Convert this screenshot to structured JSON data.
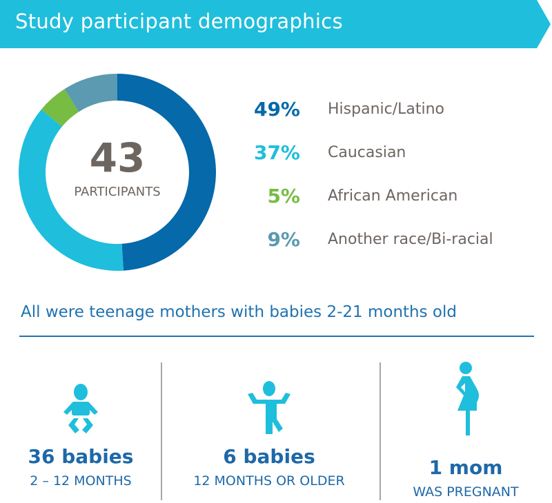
{
  "header": {
    "title": "Study participant demographics",
    "color": "#1fbedc"
  },
  "chart_data": {
    "type": "pie",
    "donut": true,
    "center_value": "43",
    "center_label": "PARTICIPANTS",
    "categories": [
      "Hispanic/Latino",
      "Caucasian",
      "African American",
      "Another race/Bi-racial"
    ],
    "values": [
      49,
      37,
      5,
      9
    ],
    "value_labels": [
      "49%",
      "37%",
      "5%",
      "9%"
    ],
    "colors": [
      "#0569aa",
      "#1fbedc",
      "#77bc43",
      "#5b9ab0"
    ]
  },
  "note": "All were teenage mothers with babies 2-21 months old",
  "stats": [
    {
      "icon": "baby-icon",
      "value": "36 babies",
      "label": "2 – 12 MONTHS"
    },
    {
      "icon": "toddler-icon",
      "value": "6 babies",
      "label": "12 MONTHS OR OLDER"
    },
    {
      "icon": "pregnant-woman-icon",
      "value": "1 mom",
      "label": "WAS PREGNANT"
    }
  ]
}
